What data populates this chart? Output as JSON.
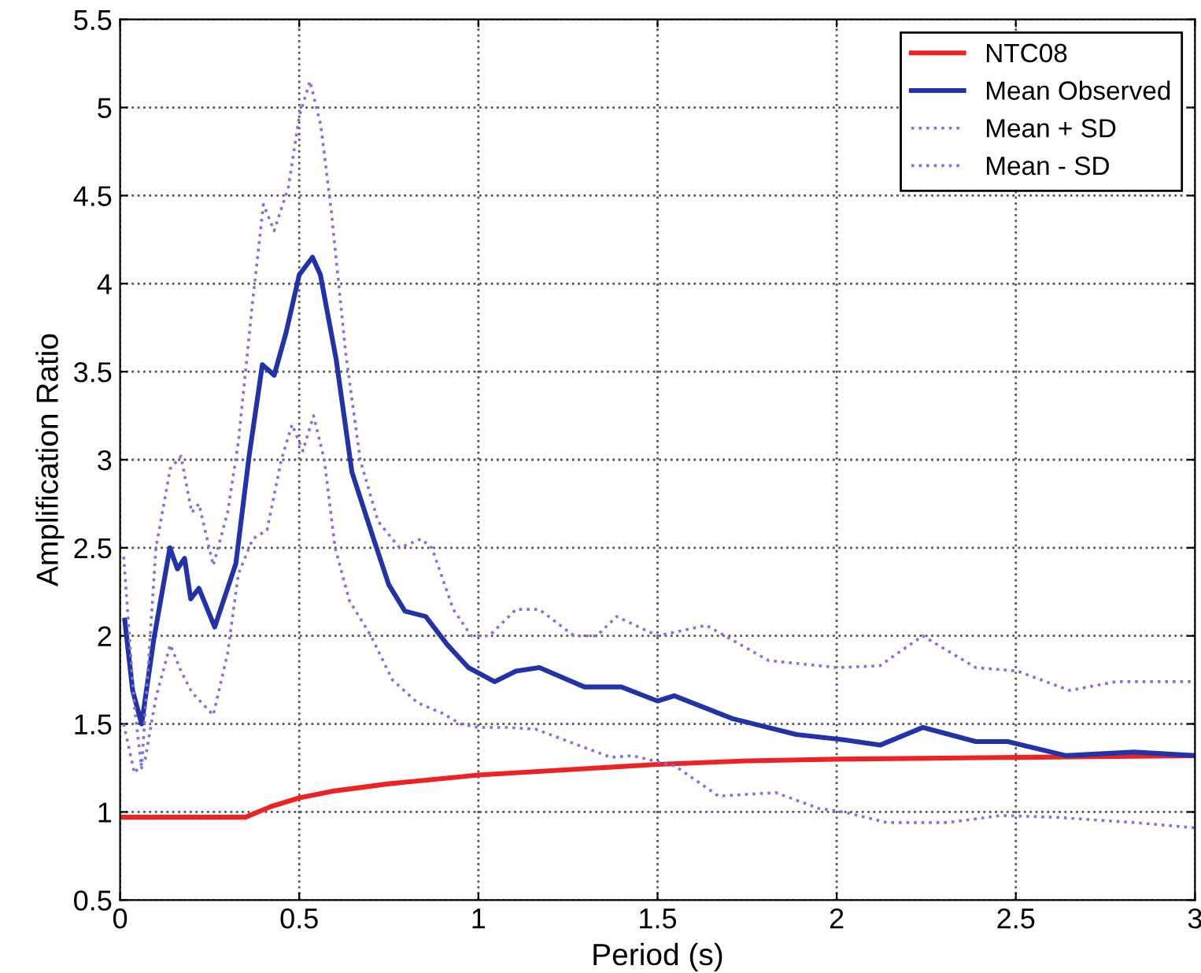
{
  "chart_data": {
    "type": "line",
    "xlabel": "Period (s)",
    "ylabel": "Amplification Ratio",
    "xlim": [
      0,
      3
    ],
    "ylim": [
      0.5,
      5.5
    ],
    "xticks": [
      0,
      0.5,
      1,
      1.5,
      2,
      2.5,
      3
    ],
    "yticks": [
      0.5,
      1,
      1.5,
      2,
      2.5,
      3,
      3.5,
      4,
      4.5,
      5,
      5.5
    ],
    "grid": true,
    "legend": "top right",
    "marker": "none",
    "series": [
      {
        "name": "NTC08",
        "color": "#ee2222",
        "line_style": "solid",
        "x": [
          0,
          0.35,
          0.42,
          0.5,
          0.6,
          0.75,
          0.9,
          1.0,
          1.25,
          1.5,
          1.75,
          2.0,
          2.5,
          3.0
        ],
        "values": [
          0.97,
          0.97,
          1.03,
          1.08,
          1.12,
          1.16,
          1.19,
          1.21,
          1.24,
          1.27,
          1.29,
          1.3,
          1.31,
          1.32
        ]
      },
      {
        "name": "Mean Observed",
        "color": "#2233aa",
        "line_style": "solid",
        "x": [
          0.013,
          0.035,
          0.06,
          0.094,
          0.139,
          0.16,
          0.18,
          0.197,
          0.22,
          0.264,
          0.323,
          0.36,
          0.397,
          0.43,
          0.463,
          0.5,
          0.537,
          0.559,
          0.603,
          0.647,
          0.706,
          0.75,
          0.795,
          0.853,
          0.913,
          0.972,
          1.045,
          1.105,
          1.17,
          1.296,
          1.399,
          1.5,
          1.547,
          1.709,
          1.887,
          2.02,
          2.122,
          2.24,
          2.388,
          2.477,
          2.64,
          2.83,
          3.0
        ],
        "values": [
          2.09,
          1.69,
          1.5,
          1.98,
          2.5,
          2.38,
          2.44,
          2.21,
          2.27,
          2.05,
          2.41,
          3.02,
          3.54,
          3.48,
          3.72,
          4.05,
          4.15,
          4.05,
          3.57,
          2.93,
          2.56,
          2.29,
          2.14,
          2.11,
          1.95,
          1.82,
          1.74,
          1.8,
          1.82,
          1.71,
          1.71,
          1.63,
          1.66,
          1.53,
          1.44,
          1.41,
          1.38,
          1.48,
          1.4,
          1.4,
          1.32,
          1.34,
          1.32
        ]
      },
      {
        "name": "Mean + SD",
        "color": "#7777dd",
        "line_style": "dotted",
        "x": [
          0.01,
          0.04,
          0.06,
          0.1,
          0.14,
          0.17,
          0.2,
          0.22,
          0.26,
          0.3,
          0.33,
          0.37,
          0.4,
          0.43,
          0.47,
          0.5,
          0.53,
          0.56,
          0.59,
          0.63,
          0.67,
          0.72,
          0.78,
          0.84,
          0.87,
          0.93,
          0.98,
          1.03,
          1.105,
          1.17,
          1.267,
          1.33,
          1.386,
          1.5,
          1.636,
          1.81,
          2.0,
          2.12,
          2.24,
          2.388,
          2.505,
          2.65,
          2.78,
          3.0
        ],
        "values": [
          2.45,
          1.6,
          1.25,
          2.5,
          2.95,
          3.02,
          2.7,
          2.75,
          2.4,
          2.7,
          3.1,
          3.9,
          4.45,
          4.3,
          4.55,
          4.95,
          5.15,
          4.9,
          4.4,
          3.6,
          3.0,
          2.65,
          2.5,
          2.55,
          2.5,
          2.15,
          2.0,
          2.0,
          2.15,
          2.15,
          2.0,
          2.0,
          2.11,
          2.0,
          2.06,
          1.86,
          1.82,
          1.83,
          2.0,
          1.82,
          1.8,
          1.69,
          1.74,
          1.74
        ]
      },
      {
        "name": "Mean - SD",
        "color": "#7777dd",
        "line_style": "dotted",
        "x": [
          0.01,
          0.04,
          0.07,
          0.1,
          0.14,
          0.17,
          0.2,
          0.26,
          0.3,
          0.33,
          0.37,
          0.41,
          0.45,
          0.48,
          0.51,
          0.54,
          0.57,
          0.6,
          0.64,
          0.7,
          0.76,
          0.83,
          0.9,
          0.95,
          1.0,
          1.08,
          1.16,
          1.37,
          1.43,
          1.55,
          1.67,
          1.83,
          1.95,
          2.02,
          2.14,
          2.31,
          2.46,
          2.61,
          2.83,
          3.0
        ],
        "values": [
          1.5,
          1.22,
          1.3,
          1.65,
          1.95,
          1.8,
          1.68,
          1.55,
          1.9,
          2.35,
          2.55,
          2.6,
          3.0,
          3.2,
          3.05,
          3.25,
          3.0,
          2.5,
          2.2,
          2.0,
          1.75,
          1.62,
          1.56,
          1.5,
          1.48,
          1.48,
          1.47,
          1.31,
          1.32,
          1.26,
          1.09,
          1.11,
          1.02,
          1.0,
          0.94,
          0.94,
          0.98,
          0.97,
          0.94,
          0.91
        ]
      }
    ]
  }
}
